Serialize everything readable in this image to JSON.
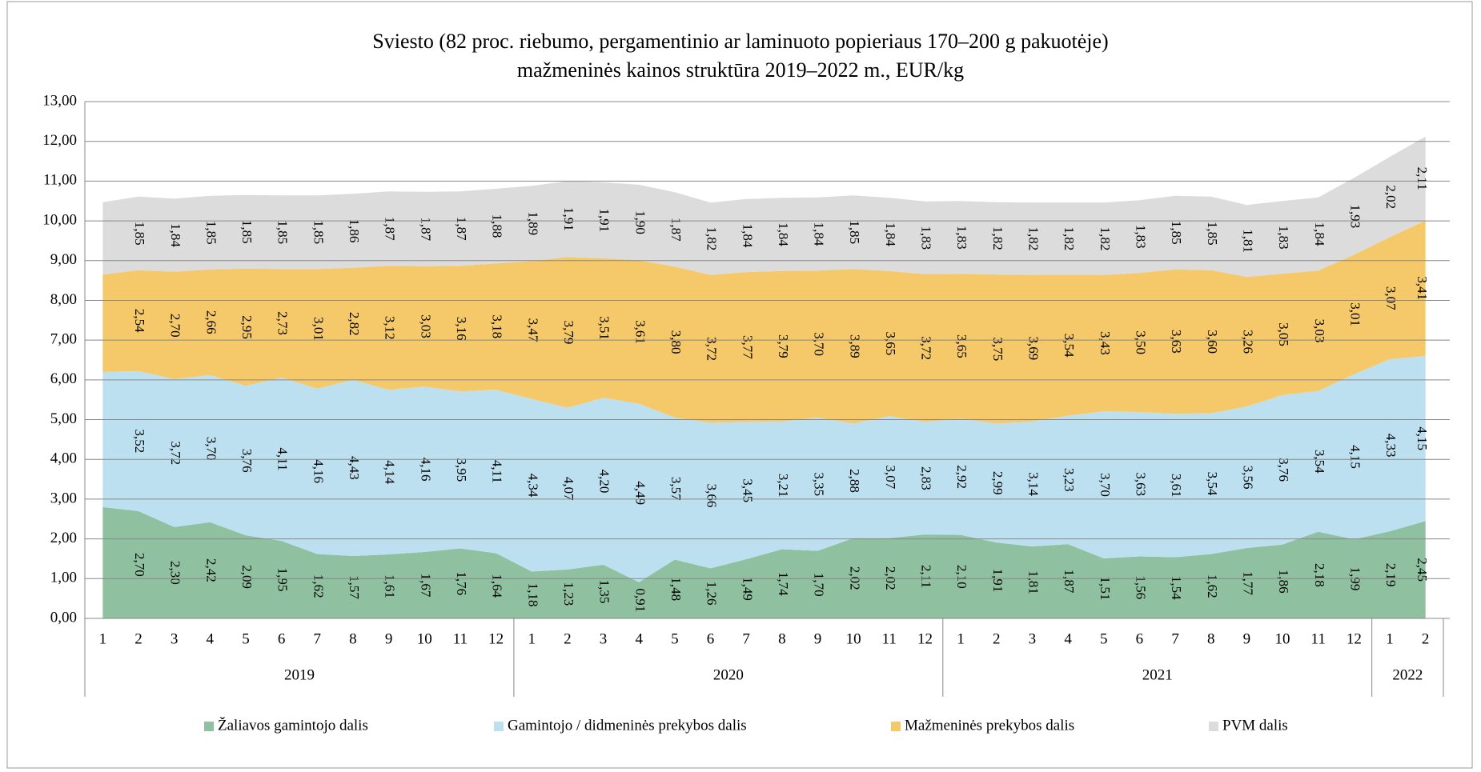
{
  "chart_data": {
    "type": "stacked_area",
    "title": "Sviesto (82 proc. riebumo, pergamentinio ar laminuoto popieriaus 170–200 g pakuotėje)",
    "subtitle": "mažmeninės kainos struktūra 2019–2022 m., EUR/kg",
    "groups": [
      {
        "label": "2019",
        "categories": [
          "1",
          "2",
          "3",
          "4",
          "5",
          "6",
          "7",
          "8",
          "9",
          "10",
          "11",
          "12"
        ]
      },
      {
        "label": "2020",
        "categories": [
          "1",
          "2",
          "3",
          "4",
          "5",
          "6",
          "7",
          "8",
          "9",
          "10",
          "11",
          "12"
        ]
      },
      {
        "label": "2021",
        "categories": [
          "1",
          "2",
          "3",
          "4",
          "5",
          "6",
          "7",
          "8",
          "9",
          "10",
          "11",
          "12"
        ]
      },
      {
        "label": "2022",
        "categories": [
          "1",
          "2"
        ]
      }
    ],
    "ylim": [
      0,
      13
    ],
    "yticks": [
      {
        "value": 0,
        "label": "0,00"
      },
      {
        "value": 1,
        "label": "1,00"
      },
      {
        "value": 2,
        "label": "2,00"
      },
      {
        "value": 3,
        "label": "3,00"
      },
      {
        "value": 4,
        "label": "4,00"
      },
      {
        "value": 5,
        "label": "5,00"
      },
      {
        "value": 6,
        "label": "6,00"
      },
      {
        "value": 7,
        "label": "7,00"
      },
      {
        "value": 8,
        "label": "8,00"
      },
      {
        "value": 9,
        "label": "9,00"
      },
      {
        "value": 10,
        "label": "10,00"
      },
      {
        "value": 11,
        "label": "11,00"
      },
      {
        "value": 12,
        "label": "12,00"
      },
      {
        "value": 13,
        "label": "13,00"
      }
    ],
    "grid": true,
    "legend": "bottom",
    "series": [
      {
        "name": "Žaliavos gamintojo dalis",
        "color": "#8fc1a0",
        "values": [
          2.8,
          2.7,
          2.3,
          2.42,
          2.09,
          1.95,
          1.62,
          1.57,
          1.61,
          1.67,
          1.76,
          1.64,
          1.18,
          1.23,
          1.35,
          0.91,
          1.48,
          1.26,
          1.49,
          1.74,
          1.7,
          2.02,
          2.02,
          2.11,
          2.1,
          1.91,
          1.81,
          1.87,
          1.51,
          1.56,
          1.54,
          1.62,
          1.77,
          1.86,
          2.18,
          1.99,
          2.19,
          2.45
        ],
        "value_labels": [
          null,
          "2,70",
          "2,30",
          "2,42",
          "2,09",
          "1,95",
          "1,62",
          "1,57",
          "1,61",
          "1,67",
          "1,76",
          "1,64",
          "1,18",
          "1,23",
          "1,35",
          "0,91",
          "1,48",
          "1,26",
          "1,49",
          "1,74",
          "1,70",
          "2,02",
          "2,02",
          "2,11",
          "2,10",
          "1,91",
          "1,81",
          "1,87",
          "1,51",
          "1,56",
          "1,54",
          "1,62",
          "1,77",
          "1,86",
          "2,18",
          "1,99",
          "2,19",
          "2,45"
        ]
      },
      {
        "name": "Gamintojo / didmeninės prekybos dalis",
        "color": "#bde0f0",
        "values": [
          3.4,
          3.52,
          3.72,
          3.7,
          3.76,
          4.11,
          4.16,
          4.43,
          4.14,
          4.16,
          3.95,
          4.11,
          4.34,
          4.07,
          4.2,
          4.49,
          3.57,
          3.66,
          3.45,
          3.21,
          3.35,
          2.88,
          3.07,
          2.83,
          2.92,
          2.99,
          3.14,
          3.23,
          3.7,
          3.63,
          3.61,
          3.54,
          3.56,
          3.76,
          3.54,
          4.15,
          4.33,
          4.15
        ],
        "value_labels": [
          null,
          "3,52",
          "3,72",
          "3,70",
          "3,76",
          "4,11",
          "4,16",
          "4,43",
          "4,14",
          "4,16",
          "3,95",
          "4,11",
          "4,34",
          "4,07",
          "4,20",
          "4,49",
          "3,57",
          "3,66",
          "3,45",
          "3,21",
          "3,35",
          "2,88",
          "3,07",
          "2,83",
          "2,92",
          "2,99",
          "3,14",
          "3,23",
          "3,70",
          "3,63",
          "3,61",
          "3,54",
          "3,56",
          "3,76",
          "3,54",
          "4,15",
          "4,33",
          "4,15"
        ]
      },
      {
        "name": "Mažmeninės prekybos dalis",
        "color": "#f5c96a",
        "values": [
          2.45,
          2.54,
          2.7,
          2.66,
          2.95,
          2.73,
          3.01,
          2.82,
          3.12,
          3.03,
          3.16,
          3.18,
          3.47,
          3.79,
          3.51,
          3.61,
          3.8,
          3.72,
          3.77,
          3.79,
          3.7,
          3.89,
          3.65,
          3.72,
          3.65,
          3.75,
          3.69,
          3.54,
          3.43,
          3.5,
          3.63,
          3.6,
          3.26,
          3.05,
          3.03,
          3.01,
          3.07,
          3.41
        ],
        "value_labels": [
          null,
          "2,54",
          "2,70",
          "2,66",
          "2,95",
          "2,73",
          "3,01",
          "2,82",
          "3,12",
          "3,03",
          "3,16",
          "3,18",
          "3,47",
          "3,79",
          "3,51",
          "3,61",
          "3,80",
          "3,72",
          "3,77",
          "3,79",
          "3,70",
          "3,89",
          "3,65",
          "3,72",
          "3,65",
          "3,75",
          "3,69",
          "3,54",
          "3,43",
          "3,50",
          "3,63",
          "3,60",
          "3,26",
          "3,05",
          "3,03",
          "3,01",
          "3,07",
          "3,41"
        ]
      },
      {
        "name": "PVM dalis",
        "color": "#dcdcdc",
        "values": [
          1.82,
          1.85,
          1.84,
          1.85,
          1.85,
          1.85,
          1.85,
          1.86,
          1.87,
          1.87,
          1.87,
          1.88,
          1.89,
          1.91,
          1.91,
          1.9,
          1.87,
          1.82,
          1.84,
          1.84,
          1.84,
          1.85,
          1.84,
          1.83,
          1.83,
          1.82,
          1.82,
          1.82,
          1.82,
          1.83,
          1.85,
          1.85,
          1.81,
          1.83,
          1.84,
          1.93,
          2.02,
          2.11
        ],
        "value_labels": [
          null,
          "1,85",
          "1,84",
          "1,85",
          "1,85",
          "1,85",
          "1,85",
          "1,86",
          "1,87",
          "1,87",
          "1,87",
          "1,88",
          "1,89",
          "1,91",
          "1,91",
          "1,90",
          "1,87",
          "1,82",
          "1,84",
          "1,84",
          "1,84",
          "1,85",
          "1,84",
          "1,83",
          "1,83",
          "1,82",
          "1,82",
          "1,82",
          "1,82",
          "1,83",
          "1,85",
          "1,85",
          "1,81",
          "1,83",
          "1,84",
          "1,93",
          "2,02",
          "2,11"
        ]
      }
    ]
  }
}
